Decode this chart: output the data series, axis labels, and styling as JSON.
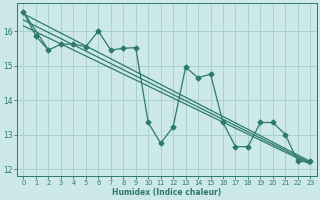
{
  "xlabel": "Humidex (Indice chaleur)",
  "bg_color": "#cce8e8",
  "grid_color": "#aad0d0",
  "line_color": "#2d7a6a",
  "xlim": [
    -0.5,
    23.5
  ],
  "ylim": [
    11.8,
    16.8
  ],
  "yticks": [
    12,
    13,
    14,
    15,
    16
  ],
  "xticks": [
    0,
    1,
    2,
    3,
    4,
    5,
    6,
    7,
    8,
    9,
    10,
    11,
    12,
    13,
    14,
    15,
    16,
    17,
    18,
    19,
    20,
    21,
    22,
    23
  ],
  "zigzag_x": [
    0,
    1,
    2,
    3,
    4,
    5,
    6,
    7,
    8,
    9,
    10,
    11,
    12,
    13,
    14,
    15,
    16,
    17,
    18,
    19,
    20,
    21,
    22,
    23
  ],
  "zigzag_y": [
    16.55,
    15.85,
    15.45,
    15.62,
    15.62,
    15.55,
    16.0,
    15.45,
    15.5,
    15.52,
    13.35,
    12.75,
    13.22,
    14.95,
    14.65,
    14.75,
    13.35,
    12.65,
    12.65,
    13.35,
    13.35,
    13.0,
    12.22,
    12.22
  ],
  "straight_lines": [
    {
      "x": [
        0,
        23
      ],
      "y": [
        16.5,
        12.22
      ]
    },
    {
      "x": [
        0,
        23
      ],
      "y": [
        16.32,
        12.18
      ]
    },
    {
      "x": [
        0,
        23
      ],
      "y": [
        16.15,
        12.14
      ]
    },
    {
      "x": [
        0,
        3
      ],
      "y": [
        15.85,
        15.42
      ]
    }
  ],
  "marker_style": "D",
  "marker_size": 2.5,
  "line_width": 0.9
}
